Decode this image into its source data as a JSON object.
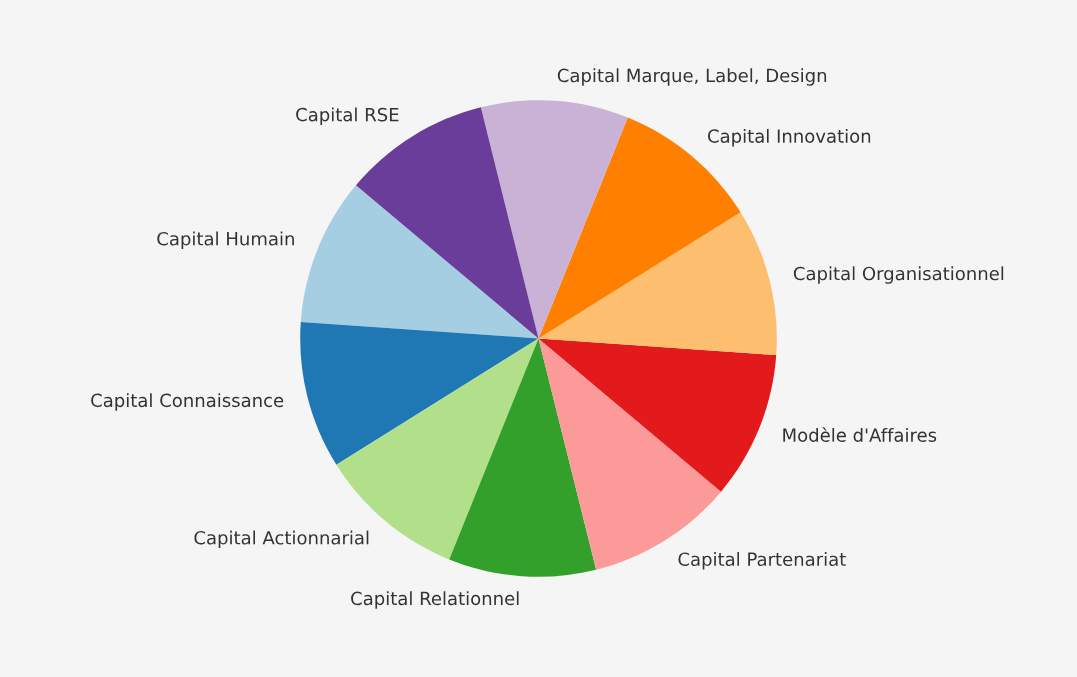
{
  "chart_data": {
    "type": "pie",
    "categories": [
      "Capital Humain",
      "Capital Connaissance",
      "Capital Actionnarial",
      "Capital Relationnel",
      "Capital Partenariat",
      "Modèle d'Affaires",
      "Capital Organisationnel",
      "Capital Innovation",
      "Capital Marque, Label, Design",
      "Capital RSE"
    ],
    "values": [
      10,
      10,
      10,
      10,
      10,
      10,
      10,
      10,
      10,
      10
    ],
    "colors": [
      "#a6cee3",
      "#1f78b4",
      "#b2df8a",
      "#33a02c",
      "#fb9a99",
      "#e31a1c",
      "#fdbf6f",
      "#ff7f00",
      "#cab2d6",
      "#6a3d9a"
    ]
  }
}
